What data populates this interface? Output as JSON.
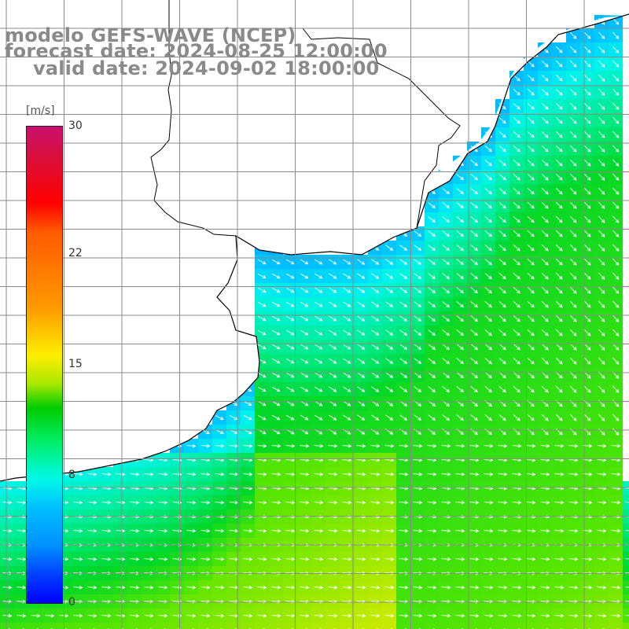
{
  "title": {
    "line1": "modelo GEFS-WAVE (NCEP)",
    "line2": "forecast date: 2024-08-25 12:00:00",
    "line3": "valid date: 2024-09-02 18:00:00"
  },
  "colorbar": {
    "unit": "[m/s]",
    "ticks": [
      {
        "label": "30",
        "value": 30
      },
      {
        "label": "22",
        "value": 22
      },
      {
        "label": "15",
        "value": 15
      },
      {
        "label": "8",
        "value": 8
      },
      {
        "label": "0",
        "value": 0
      }
    ],
    "min": 0,
    "max": 30
  },
  "map": {
    "variable": "wind speed and direction",
    "field_colors": {
      "low": "#0060ff",
      "mid": "#00e8ff",
      "high": "#10e000"
    },
    "arrow_color": "#ffffff",
    "land_color": "#ffffff",
    "grid_color": "#8a8a8a",
    "coast_color": "#000000"
  }
}
